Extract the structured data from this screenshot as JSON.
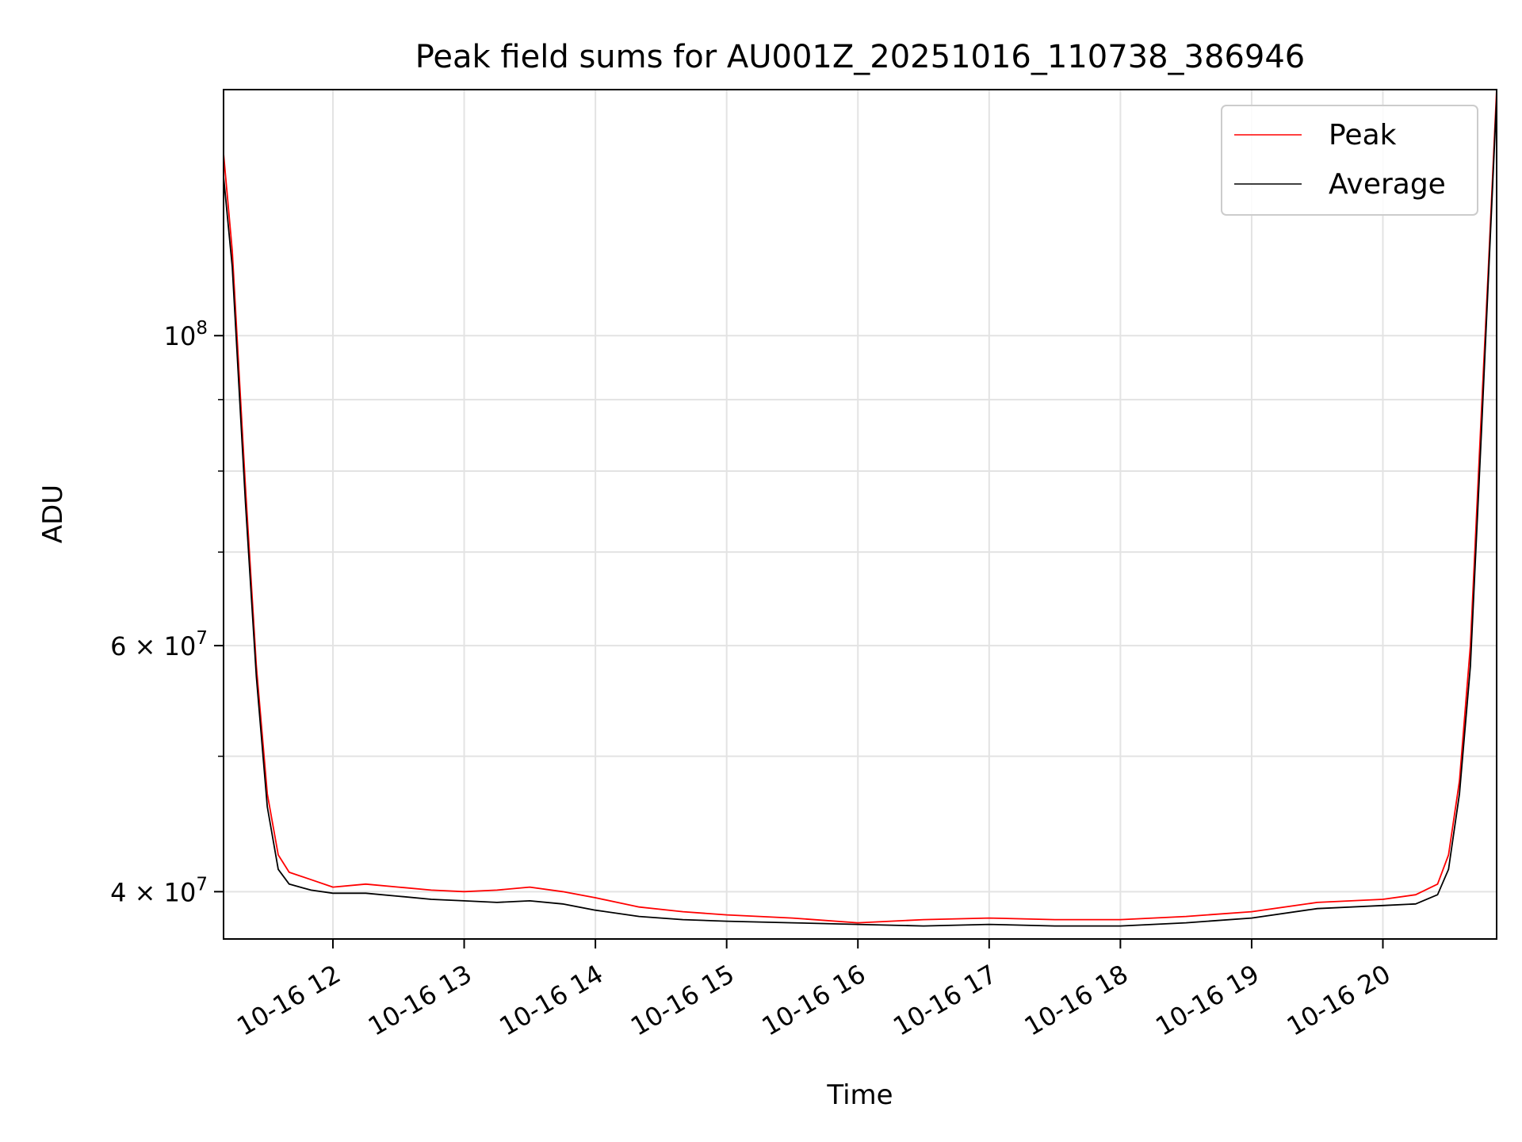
{
  "chart_data": {
    "type": "line",
    "title": "Peak field sums for AU001Z_20251016_110738_386946",
    "xlabel": "Time",
    "ylabel": "ADU",
    "yscale": "log",
    "grid": true,
    "legend_position": "top-right",
    "xlim": [
      "2025-10-16 11:10",
      "2025-10-16 20:52"
    ],
    "ylim": [
      37000000,
      150000000
    ],
    "x_ticks": [
      {
        "value": "2025-10-16 12:00",
        "label": "10-16 12"
      },
      {
        "value": "2025-10-16 13:00",
        "label": "10-16 13"
      },
      {
        "value": "2025-10-16 14:00",
        "label": "10-16 14"
      },
      {
        "value": "2025-10-16 15:00",
        "label": "10-16 15"
      },
      {
        "value": "2025-10-16 16:00",
        "label": "10-16 16"
      },
      {
        "value": "2025-10-16 17:00",
        "label": "10-16 17"
      },
      {
        "value": "2025-10-16 18:00",
        "label": "10-16 18"
      },
      {
        "value": "2025-10-16 19:00",
        "label": "10-16 19"
      },
      {
        "value": "2025-10-16 20:00",
        "label": "10-16 20"
      }
    ],
    "y_major_ticks": [
      {
        "value": 40000000,
        "base": "4",
        "times": "×",
        "power_base": "10",
        "exponent": "7"
      },
      {
        "value": 60000000,
        "base": "6",
        "times": "×",
        "power_base": "10",
        "exponent": "7"
      },
      {
        "value": 100000000,
        "base": "",
        "times": "",
        "power_base": "10",
        "exponent": "8"
      }
    ],
    "y_minor_ticks": [
      50000000,
      70000000,
      80000000,
      90000000
    ],
    "series": [
      {
        "name": "Peak",
        "color": "#ff0000",
        "x": [
          "2025-10-16 11:10",
          "2025-10-16 11:14",
          "2025-10-16 11:20",
          "2025-10-16 11:25",
          "2025-10-16 11:30",
          "2025-10-16 11:35",
          "2025-10-16 11:40",
          "2025-10-16 11:50",
          "2025-10-16 12:00",
          "2025-10-16 12:15",
          "2025-10-16 12:30",
          "2025-10-16 12:45",
          "2025-10-16 13:00",
          "2025-10-16 13:15",
          "2025-10-16 13:30",
          "2025-10-16 13:45",
          "2025-10-16 14:00",
          "2025-10-16 14:20",
          "2025-10-16 14:40",
          "2025-10-16 15:00",
          "2025-10-16 15:30",
          "2025-10-16 16:00",
          "2025-10-16 16:30",
          "2025-10-16 17:00",
          "2025-10-16 17:30",
          "2025-10-16 18:00",
          "2025-10-16 18:30",
          "2025-10-16 19:00",
          "2025-10-16 19:30",
          "2025-10-16 20:00",
          "2025-10-16 20:15",
          "2025-10-16 20:25",
          "2025-10-16 20:30",
          "2025-10-16 20:35",
          "2025-10-16 20:40",
          "2025-10-16 20:45",
          "2025-10-16 20:48",
          "2025-10-16 20:52"
        ],
        "y": [
          135000000,
          115000000,
          78000000,
          58000000,
          47000000,
          42500000,
          41300000,
          40800000,
          40300000,
          40500000,
          40300000,
          40100000,
          40000000,
          40100000,
          40300000,
          40000000,
          39600000,
          39000000,
          38700000,
          38500000,
          38300000,
          38000000,
          38200000,
          38300000,
          38200000,
          38200000,
          38400000,
          38700000,
          39300000,
          39500000,
          39800000,
          40500000,
          42500000,
          48000000,
          60000000,
          88000000,
          110000000,
          150000000
        ]
      },
      {
        "name": "Average",
        "color": "#000000",
        "x": [
          "2025-10-16 11:10",
          "2025-10-16 11:14",
          "2025-10-16 11:20",
          "2025-10-16 11:25",
          "2025-10-16 11:30",
          "2025-10-16 11:35",
          "2025-10-16 11:40",
          "2025-10-16 11:50",
          "2025-10-16 12:00",
          "2025-10-16 12:15",
          "2025-10-16 12:30",
          "2025-10-16 12:45",
          "2025-10-16 13:00",
          "2025-10-16 13:15",
          "2025-10-16 13:30",
          "2025-10-16 13:45",
          "2025-10-16 14:00",
          "2025-10-16 14:20",
          "2025-10-16 14:40",
          "2025-10-16 15:00",
          "2025-10-16 15:30",
          "2025-10-16 16:00",
          "2025-10-16 16:30",
          "2025-10-16 17:00",
          "2025-10-16 17:30",
          "2025-10-16 18:00",
          "2025-10-16 18:30",
          "2025-10-16 19:00",
          "2025-10-16 19:30",
          "2025-10-16 20:00",
          "2025-10-16 20:15",
          "2025-10-16 20:25",
          "2025-10-16 20:30",
          "2025-10-16 20:35",
          "2025-10-16 20:40",
          "2025-10-16 20:45",
          "2025-10-16 20:48",
          "2025-10-16 20:52"
        ],
        "y": [
          130000000,
          112000000,
          76000000,
          57000000,
          46000000,
          41500000,
          40500000,
          40100000,
          39900000,
          39900000,
          39700000,
          39500000,
          39400000,
          39300000,
          39400000,
          39200000,
          38800000,
          38400000,
          38200000,
          38100000,
          38000000,
          37900000,
          37800000,
          37900000,
          37800000,
          37800000,
          38000000,
          38300000,
          38900000,
          39100000,
          39200000,
          39800000,
          41500000,
          47000000,
          58000000,
          85000000,
          108000000,
          148000000
        ]
      }
    ]
  }
}
